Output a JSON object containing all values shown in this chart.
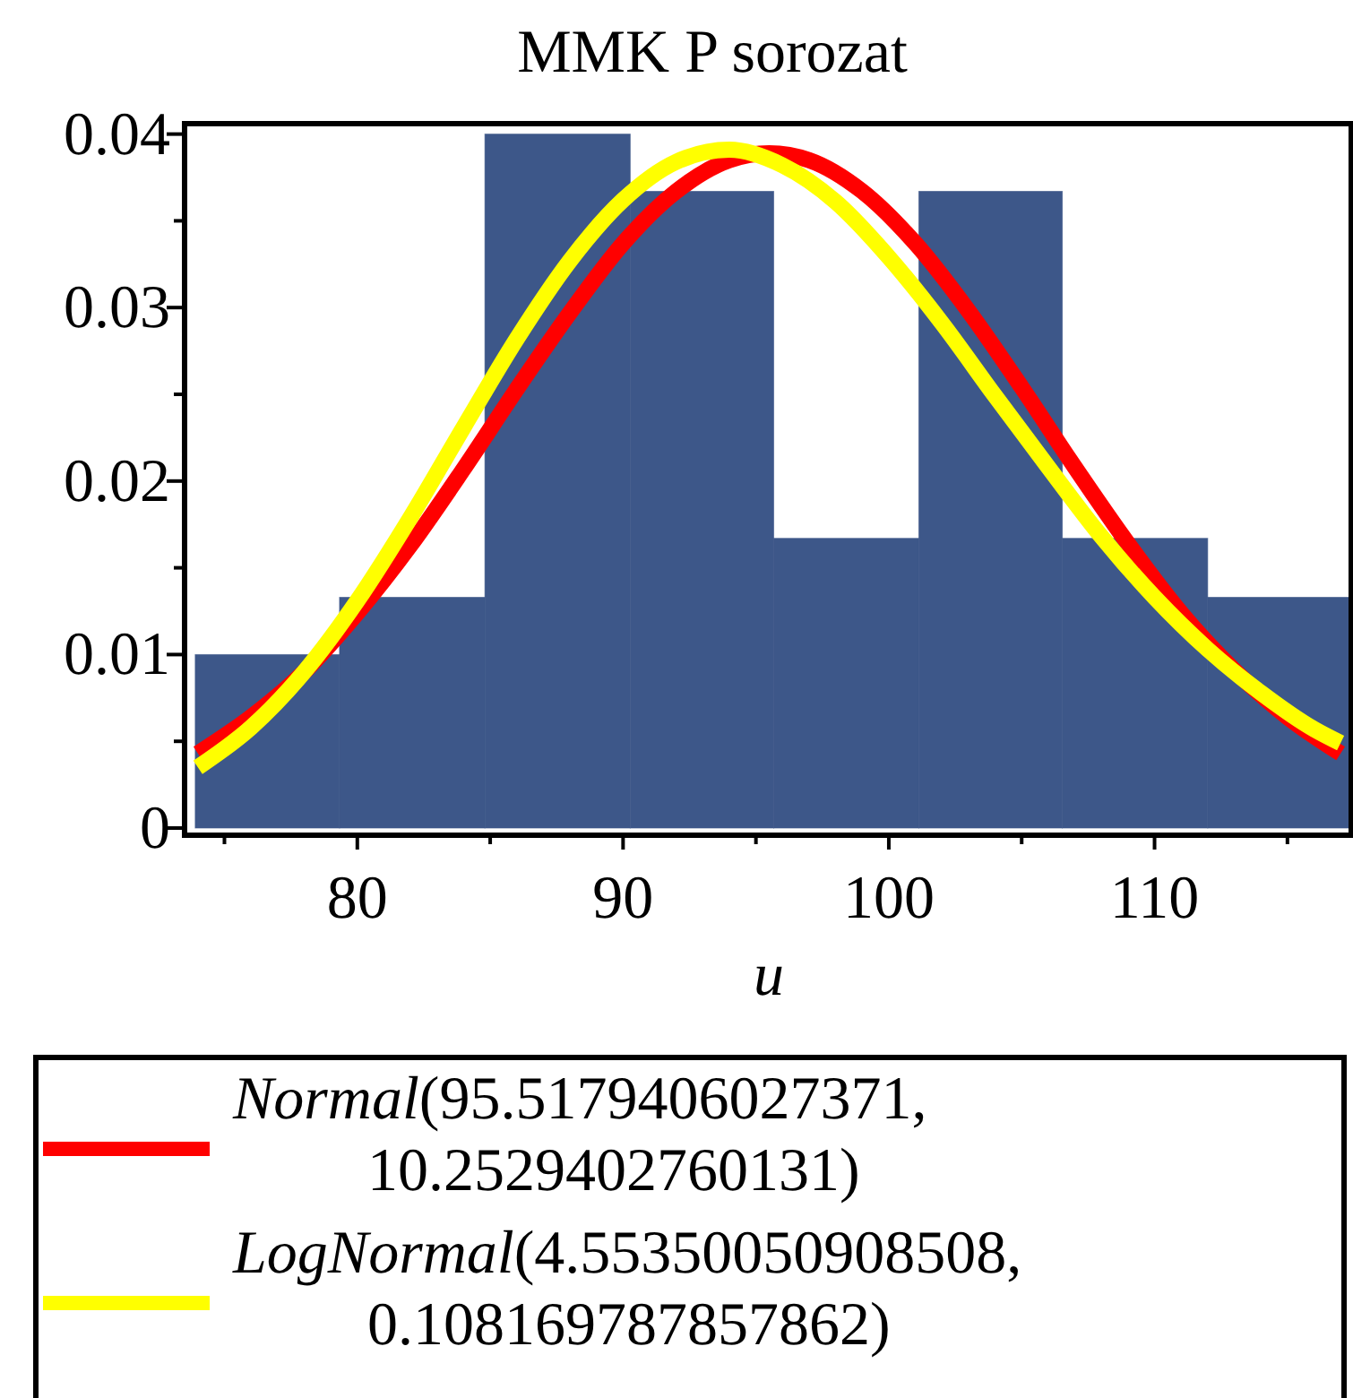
{
  "chart_data": {
    "type": "histogram",
    "title": "MMK P sorozat",
    "xlabel": "u",
    "bins": [
      73.9,
      79.33,
      84.8,
      90.27,
      95.67,
      101.13,
      106.53,
      112,
      117.4
    ],
    "values": [
      0.01,
      0.0133,
      0.04,
      0.0367,
      0.0167,
      0.0367,
      0.0167,
      0.0133
    ],
    "color": "#3d5789",
    "xlim": [
      73.5,
      117.4
    ],
    "xticks": [
      {
        "value": 75,
        "label": null
      },
      80,
      {
        "value": 85,
        "label": null
      },
      90,
      {
        "value": 95,
        "label": null
      },
      100,
      {
        "value": 105,
        "label": null
      },
      110,
      {
        "value": 115,
        "label": null
      }
    ],
    "ylim": [
      0,
      0.0406
    ],
    "yticks": [
      0,
      {
        "value": 0.005,
        "label": null
      },
      0.01,
      {
        "value": 0.015,
        "label": null
      },
      0.02,
      {
        "value": 0.025,
        "label": null
      },
      0.03,
      {
        "value": 0.035,
        "label": null
      },
      0.04
    ],
    "grid": false,
    "legend": "bottom",
    "series": [
      {
        "type": "line",
        "name": "Normal(95.5179406027371, 10.2529402760131)",
        "color": "#ff0000",
        "x": [
          74,
          76,
          78,
          80,
          82,
          84,
          86,
          88,
          90,
          92,
          94,
          95.5,
          97,
          99,
          101,
          103,
          105,
          107,
          109,
          111,
          113,
          115,
          117
        ],
        "values": [
          0.0043,
          0.0064,
          0.009,
          0.0124,
          0.0163,
          0.0207,
          0.0253,
          0.0297,
          0.0337,
          0.0367,
          0.0385,
          0.0389,
          0.0385,
          0.0367,
          0.0337,
          0.0298,
          0.0254,
          0.0208,
          0.0164,
          0.0124,
          0.0091,
          0.0064,
          0.0043
        ]
      },
      {
        "type": "line",
        "name": "LogNormal(4.55350050908508, 0.108169787857862)",
        "color": "#ffff00",
        "x": [
          74,
          76,
          78,
          80,
          82,
          84,
          86,
          88,
          90,
          92,
          94,
          96,
          98,
          100,
          102,
          104,
          106,
          108,
          110,
          112,
          114,
          116,
          117
        ],
        "values": [
          0.0035,
          0.0058,
          0.009,
          0.0131,
          0.0179,
          0.0231,
          0.0282,
          0.0327,
          0.0362,
          0.0384,
          0.0391,
          0.0382,
          0.0361,
          0.0329,
          0.0291,
          0.0249,
          0.0208,
          0.0168,
          0.0133,
          0.0103,
          0.0078,
          0.0057,
          0.0049
        ]
      }
    ]
  }
}
